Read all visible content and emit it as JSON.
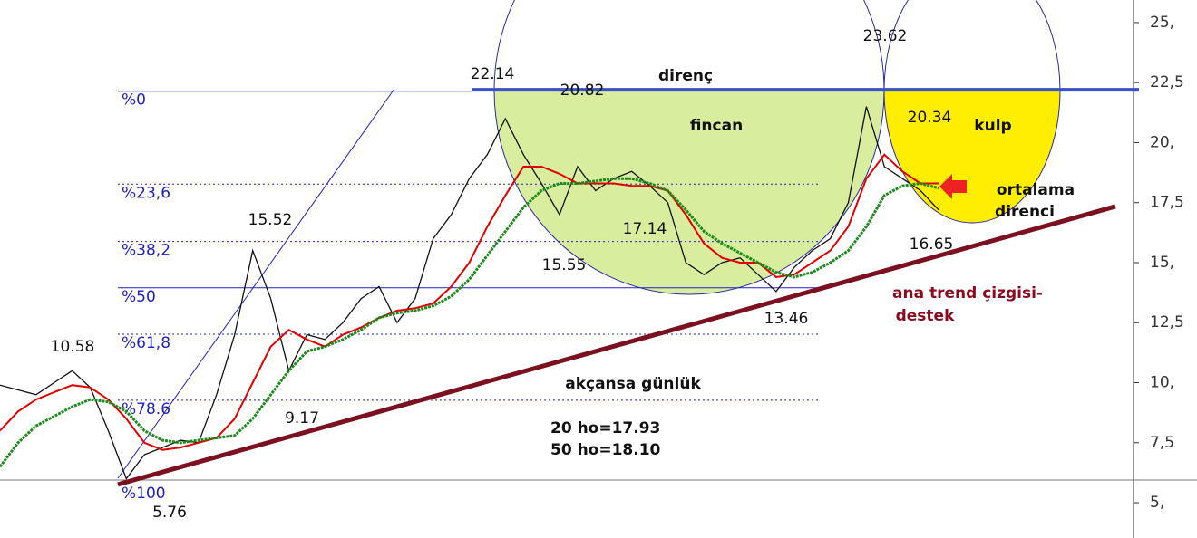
{
  "chart_data": {
    "type": "line",
    "categories": [
      null,
      null,
      null,
      null,
      null,
      null,
      null,
      null,
      null,
      null,
      null,
      null,
      null,
      null,
      null,
      null,
      null,
      null,
      null,
      null,
      null,
      null,
      null,
      null,
      null,
      null,
      null,
      null,
      null,
      null,
      null,
      null,
      null,
      null,
      null,
      null,
      null,
      null,
      null,
      null,
      null,
      null,
      null,
      null,
      null,
      null,
      null,
      null,
      null,
      null,
      null,
      null,
      null
    ],
    "series": [
      {
        "color": "#111111",
        "values": [
          9.9,
          9.7,
          9.5,
          10.0,
          10.5,
          9.8,
          8.0,
          6.0,
          7.0,
          7.3,
          7.6,
          7.5,
          9.5,
          12.0,
          15.5,
          13.5,
          10.5,
          12.0,
          11.8,
          12.5,
          13.5,
          14.0,
          12.5,
          13.5,
          16.0,
          17.0,
          18.5,
          19.5,
          21.0,
          19.5,
          18.3,
          17.0,
          19.0,
          18.0,
          18.5,
          18.8,
          18.2,
          17.5,
          15.0,
          14.5,
          15.0,
          15.2,
          14.5,
          13.8,
          14.8,
          15.5,
          16.0,
          17.5,
          21.5,
          19.0,
          18.5,
          18.0,
          17.2
        ]
      },
      {
        "color": "#e00000",
        "values": [
          8.0,
          8.8,
          9.3,
          9.6,
          9.9,
          9.8,
          9.3,
          8.5,
          7.5,
          7.2,
          7.3,
          7.5,
          7.7,
          8.5,
          10.0,
          11.5,
          12.2,
          11.8,
          11.5,
          12.0,
          12.3,
          12.7,
          13.0,
          13.1,
          13.3,
          14.0,
          15.0,
          16.5,
          17.8,
          19.0,
          19.0,
          18.7,
          18.3,
          18.3,
          18.3,
          18.2,
          18.2,
          18.0,
          17.0,
          15.8,
          15.2,
          15.0,
          15.0,
          14.4,
          14.5,
          15.0,
          15.5,
          16.5,
          18.5,
          19.5,
          18.8,
          18.3,
          18.3
        ]
      },
      {
        "color": "#1e8a1e",
        "values": [
          6.5,
          7.5,
          8.2,
          8.6,
          9.0,
          9.3,
          9.2,
          8.8,
          8.0,
          7.6,
          7.5,
          7.6,
          7.7,
          7.8,
          8.5,
          9.5,
          10.5,
          11.3,
          11.5,
          11.8,
          12.2,
          12.7,
          12.9,
          13.0,
          13.2,
          13.6,
          14.3,
          15.3,
          16.3,
          17.3,
          18.0,
          18.3,
          18.3,
          18.4,
          18.5,
          18.5,
          18.3,
          18.0,
          17.2,
          16.3,
          15.8,
          15.4,
          15.0,
          14.6,
          14.4,
          14.6,
          15.0,
          15.5,
          16.5,
          17.8,
          18.2,
          18.3,
          18.1
        ]
      }
    ],
    "ylim": [
      3.53,
      25.94
    ],
    "yticks": [
      {
        "value": 5,
        "label": "5,"
      },
      {
        "value": 7.5,
        "label": "7,5"
      },
      {
        "value": 10,
        "label": "10,"
      },
      {
        "value": 12.5,
        "label": "12,5"
      },
      {
        "value": 15,
        "label": "15,"
      },
      {
        "value": 17.5,
        "label": "17,5"
      },
      {
        "value": 20,
        "label": "20,"
      },
      {
        "value": 22.5,
        "label": "22,5"
      },
      {
        "value": 25,
        "label": "25,"
      }
    ],
    "fib_levels": [
      {
        "label": "%0",
        "value": 22.14
      },
      {
        "label": "%23,6",
        "value": 18.27
      },
      {
        "label": "%38,2",
        "value": 15.88
      },
      {
        "label": "%50",
        "value": 13.95
      },
      {
        "label": "%61,8",
        "value": 12.02
      },
      {
        "label": "%78.6",
        "value": 9.27
      },
      {
        "label": "%100",
        "value": 5.76
      }
    ],
    "resistance": 22.2,
    "trend_line": [
      5.76,
      17.34
    ],
    "annotations": [
      "22.14",
      "20.82",
      "direnç",
      "fincan",
      "kulp",
      "20.34",
      "23.62",
      "ortalama",
      "direnci",
      "15.52",
      "17.14",
      "15.55",
      "16.65",
      "ana trend çizgisi-",
      "destek",
      "13.46",
      "10.58",
      "akçansa günlük",
      "9.17",
      "20 ho=17.93",
      "50 ho=18.10",
      "5.76"
    ]
  }
}
